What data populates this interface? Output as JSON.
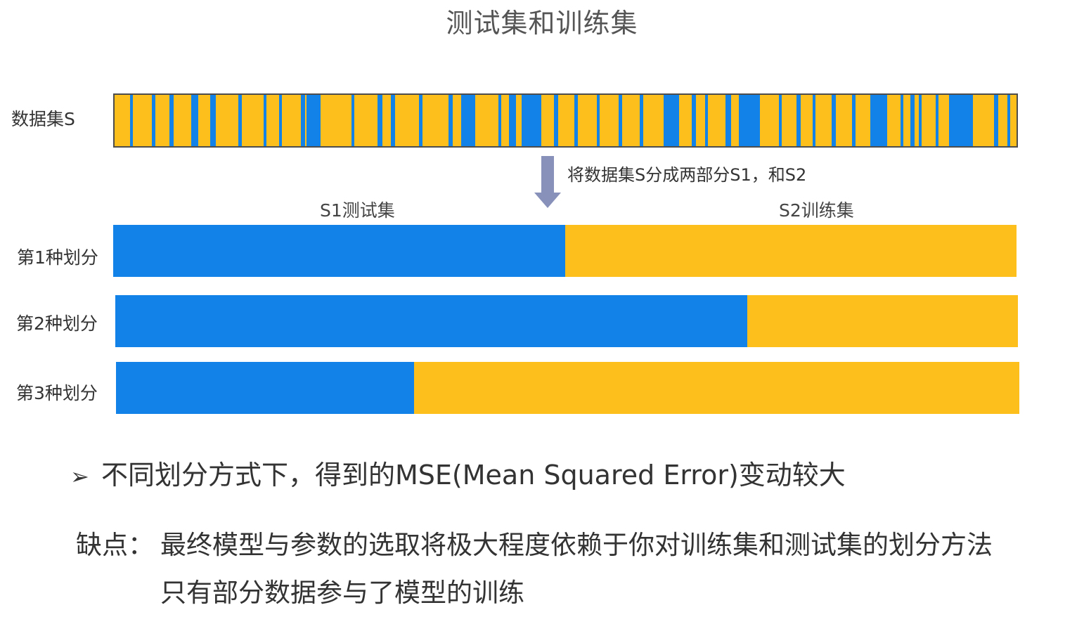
{
  "title": "测试集和训练集",
  "dataset": {
    "label": "数据集S",
    "colors": {
      "train": "#FDBF1B",
      "test": "#1382E8",
      "border": "#4d4d4d"
    }
  },
  "split_note": "将数据集S分成两部分S1，和S2",
  "labels": {
    "test_set": "S1测试集",
    "train_set": "S2训练集"
  },
  "splits": [
    {
      "label": "第1种划分",
      "test_fraction": 0.5
    },
    {
      "label": "第2种划分",
      "test_fraction": 0.7
    },
    {
      "label": "第3种划分",
      "test_fraction": 0.33
    }
  ],
  "bullet": {
    "symbol": "➢",
    "text": "不同划分方式下，得到的MSE(Mean Squared Error)变动较大"
  },
  "drawback": {
    "prefix": "缺点：",
    "line1": "最终模型与参数的选取将极大程度依赖于你对训练集和测试集的划分方法",
    "line2": "只有部分数据参与了模型的训练"
  }
}
